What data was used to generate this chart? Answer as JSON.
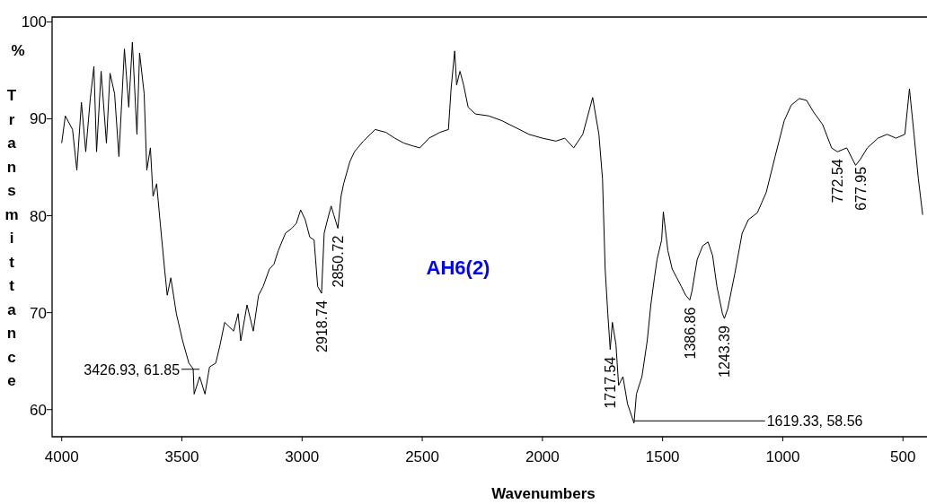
{
  "chart_data": {
    "type": "line",
    "title": "AH6(2)",
    "xlabel": "Wavenumbers",
    "ylabel": "% Transmittance",
    "xlim": [
      4040,
      400
    ],
    "ylim": [
      57.2,
      100.5
    ],
    "xticks": [
      4000,
      3500,
      3000,
      2500,
      2000,
      1500,
      1000,
      500
    ],
    "yticks": [
      {
        "value": 60,
        "label": "60"
      },
      {
        "value": 70,
        "label": "70"
      },
      {
        "value": 80,
        "label": "80"
      },
      {
        "value": 90,
        "label": "90"
      },
      {
        "value": 100,
        "label": "100"
      }
    ],
    "grid": false,
    "marker": "none",
    "line_style": "solid",
    "x": [
      4000,
      3985,
      3955,
      3937,
      3918,
      3900,
      3881,
      3866,
      3855,
      3836,
      3814,
      3799,
      3780,
      3762,
      3739,
      3721,
      3706,
      3687,
      3676,
      3657,
      3646,
      3631,
      3620,
      3605,
      3590,
      3572,
      3561,
      3546,
      3523,
      3497,
      3471,
      3453,
      3449,
      3426,
      3404,
      3385,
      3359,
      3341,
      3322,
      3285,
      3266,
      3255,
      3229,
      3203,
      3181,
      3162,
      3136,
      3117,
      3099,
      3069,
      3043,
      3024,
      3006,
      2987,
      2968,
      2950,
      2935,
      2919,
      2908,
      2894,
      2879,
      2868,
      2851,
      2838,
      2827,
      2801,
      2782,
      2745,
      2696,
      2651,
      2614,
      2577,
      2539,
      2510,
      2472,
      2427,
      2391,
      2380,
      2365,
      2357,
      2343,
      2328,
      2309,
      2279,
      2223,
      2168,
      2112,
      2056,
      2000,
      1944,
      1907,
      1870,
      1832,
      1791,
      1765,
      1750,
      1739,
      1728,
      1718,
      1709,
      1694,
      1683,
      1665,
      1646,
      1619,
      1609,
      1586,
      1564,
      1549,
      1534,
      1523,
      1504,
      1497,
      1478,
      1460,
      1441,
      1422,
      1404,
      1387,
      1378,
      1356,
      1333,
      1311,
      1292,
      1274,
      1251,
      1243,
      1229,
      1199,
      1169,
      1143,
      1106,
      1069,
      1032,
      994,
      965,
      931,
      901,
      872,
      834,
      797,
      773,
      734,
      697,
      678,
      648,
      604,
      566,
      529,
      492,
      473,
      454,
      436,
      418
    ],
    "series": [
      {
        "color": "#000000",
        "values": [
          87.5,
          90.3,
          88.9,
          84.7,
          91.7,
          86.6,
          92.1,
          95.4,
          86.6,
          94.9,
          87.5,
          94.7,
          92.6,
          86.1,
          97.2,
          91.2,
          97.9,
          88.4,
          96.8,
          92.6,
          84.7,
          87.0,
          82.0,
          83.3,
          79.2,
          74.5,
          71.8,
          73.6,
          69.9,
          67.1,
          64.8,
          64.2,
          61.6,
          63.4,
          61.6,
          64.4,
          64.8,
          66.7,
          69.0,
          68.1,
          69.9,
          67.1,
          70.8,
          68.1,
          71.8,
          72.7,
          74.5,
          75.0,
          76.4,
          78.2,
          78.7,
          79.2,
          80.6,
          79.6,
          77.8,
          77.5,
          72.7,
          72.0,
          78.2,
          79.6,
          81.0,
          80.1,
          78.7,
          82.0,
          83.3,
          85.6,
          86.6,
          87.7,
          88.9,
          88.6,
          88.0,
          87.5,
          87.2,
          87.0,
          88.0,
          88.6,
          88.9,
          93.1,
          97.0,
          93.5,
          94.9,
          93.5,
          91.2,
          90.5,
          90.3,
          89.8,
          89.1,
          88.4,
          88.0,
          87.7,
          88.0,
          87.0,
          88.4,
          92.2,
          88.4,
          83.8,
          74.5,
          69.9,
          66.2,
          69.0,
          66.7,
          62.5,
          63.4,
          60.6,
          58.6,
          61.6,
          63.4,
          67.1,
          70.8,
          73.6,
          75.5,
          77.5,
          80.4,
          76.4,
          74.5,
          73.6,
          72.7,
          71.8,
          71.3,
          72.2,
          75.5,
          76.9,
          77.3,
          75.9,
          72.7,
          69.9,
          69.4,
          70.4,
          74.1,
          78.2,
          79.6,
          80.3,
          82.4,
          86.1,
          89.8,
          91.4,
          92.1,
          91.9,
          90.7,
          89.4,
          87.0,
          86.6,
          87.0,
          85.2,
          85.8,
          87.0,
          88.0,
          88.4,
          88.0,
          88.4,
          93.1,
          88.4,
          83.8,
          80.1
        ]
      }
    ],
    "annotations": [
      {
        "text": "3426.93, 61.85",
        "x": 3426.93,
        "y": 61.85
      },
      {
        "text": "2918.74",
        "x": 2918.74,
        "y": 72.0
      },
      {
        "text": "2850.72",
        "x": 2850.72,
        "y": 78.7
      },
      {
        "text": "1717.54",
        "x": 1717.54,
        "y": 66.2
      },
      {
        "text": "1619.33, 58.56",
        "x": 1619.33,
        "y": 58.56
      },
      {
        "text": "1386.86",
        "x": 1386.86,
        "y": 71.3
      },
      {
        "text": "1243.39",
        "x": 1243.39,
        "y": 69.4
      },
      {
        "text": "772.54",
        "x": 772.54,
        "y": 86.6
      },
      {
        "text": "677.95",
        "x": 677.95,
        "y": 85.8
      }
    ]
  }
}
